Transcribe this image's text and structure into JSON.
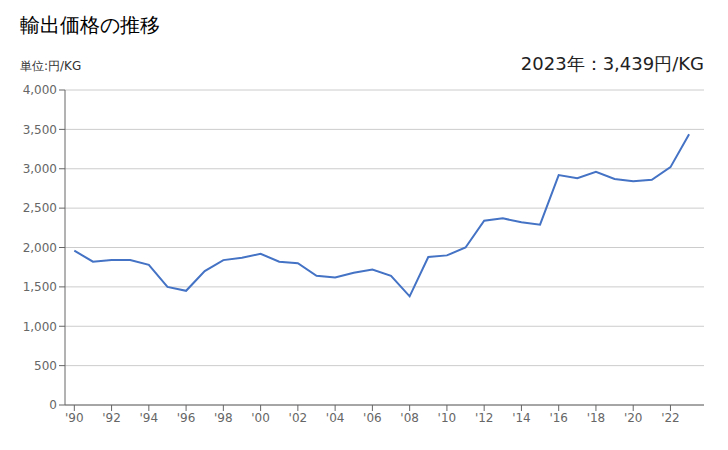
{
  "chart_data": {
    "type": "line",
    "title": "輸出価格の推移",
    "ylabel": "単位:円/KG",
    "annotation": "2023年：3,439円/KG",
    "x": [
      1990,
      1991,
      1992,
      1993,
      1994,
      1995,
      1996,
      1997,
      1998,
      1999,
      2000,
      2001,
      2002,
      2003,
      2004,
      2005,
      2006,
      2007,
      2008,
      2009,
      2010,
      2011,
      2012,
      2013,
      2014,
      2015,
      2016,
      2017,
      2018,
      2019,
      2020,
      2021,
      2022,
      2023
    ],
    "values": [
      1960,
      1820,
      1840,
      1840,
      1780,
      1500,
      1450,
      1700,
      1840,
      1870,
      1920,
      1820,
      1800,
      1640,
      1620,
      1680,
      1720,
      1640,
      1380,
      1880,
      1900,
      2000,
      2340,
      2370,
      2320,
      2290,
      2920,
      2880,
      2960,
      2870,
      2840,
      2860,
      3020,
      3439
    ],
    "color": "#4472C4",
    "xlim": [
      1989.5,
      2023.8
    ],
    "xticks": [
      {
        "value": 1990,
        "label": "'90"
      },
      {
        "value": 1992,
        "label": "'92"
      },
      {
        "value": 1994,
        "label": "'94"
      },
      {
        "value": 1996,
        "label": "'96"
      },
      {
        "value": 1998,
        "label": "'98"
      },
      {
        "value": 2000,
        "label": "'00"
      },
      {
        "value": 2002,
        "label": "'02"
      },
      {
        "value": 2004,
        "label": "'04"
      },
      {
        "value": 2006,
        "label": "'06"
      },
      {
        "value": 2008,
        "label": "'08"
      },
      {
        "value": 2010,
        "label": "'10"
      },
      {
        "value": 2012,
        "label": "'12"
      },
      {
        "value": 2014,
        "label": "'14"
      },
      {
        "value": 2016,
        "label": "'16"
      },
      {
        "value": 2018,
        "label": "'18"
      },
      {
        "value": 2020,
        "label": "'20"
      },
      {
        "value": 2022,
        "label": "'22"
      }
    ],
    "ylim": [
      0,
      4000
    ],
    "yticks": [
      0,
      500,
      {
        "value": 1000,
        "label": "1,000"
      },
      {
        "value": 1500,
        "label": "1,500"
      },
      {
        "value": 2000,
        "label": "2,000"
      },
      {
        "value": 2500,
        "label": "2,500"
      },
      {
        "value": 3000,
        "label": "3,000"
      },
      {
        "value": 3500,
        "label": "3,500"
      },
      {
        "value": 4000,
        "label": "4,000"
      }
    ],
    "grid": "y"
  }
}
